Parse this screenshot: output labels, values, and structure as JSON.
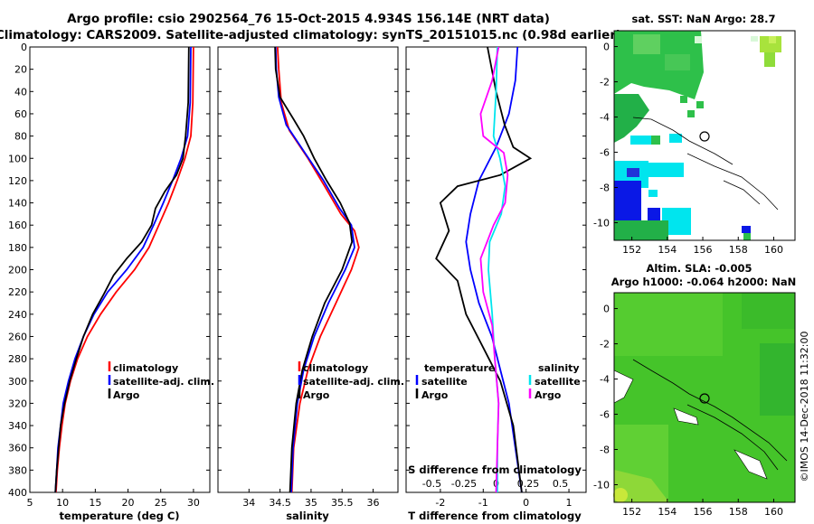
{
  "title_line1": "Argo profile: csio 2902564_76 15-Oct-2015 4.934S 156.14E (NRT data)",
  "title_line2": "Climatology: CARS2009. Satellite-adjusted climatology: synTS_20151015.nc (0.98d earlier)",
  "colors": {
    "climatology": "#ff0000",
    "satellite": "#0000ff",
    "argo": "#000000",
    "sal_sat": "#00e5ee",
    "sal_argo": "#ff00ff"
  },
  "chart_data": [
    {
      "type": "line",
      "name": "temperature",
      "xlabel": "temperature (deg C)",
      "xlim": [
        5,
        32.5
      ],
      "ylim": [
        400,
        0
      ],
      "xticks": [
        5,
        10,
        15,
        20,
        25,
        30
      ],
      "yticks": [
        0,
        20,
        40,
        60,
        80,
        100,
        120,
        140,
        160,
        180,
        200,
        220,
        240,
        260,
        280,
        300,
        320,
        340,
        360,
        380,
        400
      ],
      "legend": [
        "climatology",
        "satellite-adj. clim.",
        "Argo"
      ],
      "series": [
        {
          "name": "climatology",
          "points": [
            [
              30,
              0
            ],
            [
              29.9,
              50
            ],
            [
              29.6,
              80
            ],
            [
              28.7,
              100
            ],
            [
              27.5,
              120
            ],
            [
              26.2,
              140
            ],
            [
              24.7,
              160
            ],
            [
              23.2,
              180
            ],
            [
              21,
              200
            ],
            [
              18.2,
              220
            ],
            [
              15.8,
              240
            ],
            [
              13.8,
              260
            ],
            [
              12.3,
              280
            ],
            [
              11.2,
              300
            ],
            [
              10.4,
              320
            ],
            [
              9.9,
              340
            ],
            [
              9.5,
              360
            ],
            [
              9.2,
              380
            ],
            [
              9,
              400
            ]
          ]
        },
        {
          "name": "satellite",
          "points": [
            [
              29.6,
              0
            ],
            [
              29.5,
              50
            ],
            [
              29.1,
              80
            ],
            [
              28.1,
              100
            ],
            [
              26.8,
              120
            ],
            [
              25.4,
              140
            ],
            [
              23.9,
              160
            ],
            [
              22.3,
              180
            ],
            [
              19.8,
              200
            ],
            [
              16.9,
              220
            ],
            [
              14.8,
              240
            ],
            [
              13.2,
              260
            ],
            [
              11.9,
              280
            ],
            [
              10.9,
              300
            ],
            [
              10.1,
              320
            ],
            [
              9.7,
              340
            ],
            [
              9.3,
              360
            ],
            [
              9.1,
              380
            ],
            [
              8.9,
              400
            ]
          ]
        },
        {
          "name": "Argo",
          "points": [
            [
              29.3,
              0
            ],
            [
              29.2,
              50
            ],
            [
              28.8,
              80
            ],
            [
              28.4,
              100
            ],
            [
              27.4,
              115
            ],
            [
              25.6,
              130
            ],
            [
              24.2,
              145
            ],
            [
              23.6,
              160
            ],
            [
              22.1,
              175
            ],
            [
              19.8,
              190
            ],
            [
              17.8,
              205
            ],
            [
              16.3,
              222
            ],
            [
              14.6,
              240
            ],
            [
              13.2,
              260
            ],
            [
              12.1,
              280
            ],
            [
              11.1,
              300
            ],
            [
              10.3,
              320
            ],
            [
              9.7,
              340
            ],
            [
              9.4,
              360
            ],
            [
              9.1,
              380
            ],
            [
              8.9,
              400
            ]
          ]
        }
      ]
    },
    {
      "type": "line",
      "name": "salinity",
      "xlabel": "salinity",
      "xlim": [
        33.5,
        36.4
      ],
      "ylim": [
        400,
        0
      ],
      "xticks": [
        34,
        34.5,
        35,
        35.5,
        36
      ],
      "xtick_labels": [
        "34",
        "34.5",
        "35",
        "35.5",
        "36"
      ],
      "legend": [
        "climatology",
        "satellite-adj. clim.",
        "Argo"
      ],
      "series": [
        {
          "name": "climatology",
          "points": [
            [
              34.46,
              0
            ],
            [
              34.48,
              20
            ],
            [
              34.52,
              50
            ],
            [
              34.65,
              75
            ],
            [
              34.95,
              100
            ],
            [
              35.22,
              125
            ],
            [
              35.48,
              150
            ],
            [
              35.7,
              165
            ],
            [
              35.77,
              180
            ],
            [
              35.65,
              200
            ],
            [
              35.4,
              230
            ],
            [
              35.15,
              260
            ],
            [
              34.95,
              290
            ],
            [
              34.82,
              320
            ],
            [
              34.72,
              360
            ],
            [
              34.69,
              400
            ]
          ]
        },
        {
          "name": "satellite",
          "points": [
            [
              34.43,
              0
            ],
            [
              34.44,
              20
            ],
            [
              34.48,
              45
            ],
            [
              34.6,
              70
            ],
            [
              34.9,
              95
            ],
            [
              35.2,
              120
            ],
            [
              35.46,
              145
            ],
            [
              35.65,
              160
            ],
            [
              35.7,
              180
            ],
            [
              35.55,
              200
            ],
            [
              35.28,
              230
            ],
            [
              35.05,
              260
            ],
            [
              34.88,
              290
            ],
            [
              34.78,
              320
            ],
            [
              34.71,
              360
            ],
            [
              34.68,
              400
            ]
          ]
        },
        {
          "name": "Argo",
          "points": [
            [
              34.42,
              0
            ],
            [
              34.43,
              20
            ],
            [
              34.5,
              45
            ],
            [
              34.72,
              65
            ],
            [
              34.88,
              80
            ],
            [
              35.05,
              100
            ],
            [
              35.25,
              120
            ],
            [
              35.47,
              140
            ],
            [
              35.62,
              158
            ],
            [
              35.66,
              175
            ],
            [
              35.5,
              200
            ],
            [
              35.22,
              230
            ],
            [
              35.02,
              260
            ],
            [
              34.86,
              290
            ],
            [
              34.76,
              320
            ],
            [
              34.69,
              360
            ],
            [
              34.66,
              400
            ]
          ]
        }
      ]
    },
    {
      "type": "line",
      "name": "difference from climatology",
      "xlabel": "T difference from climatology",
      "xlabel_top": "S difference from climatology",
      "xlim": [
        -2.8,
        1.4
      ],
      "ylim": [
        400,
        0
      ],
      "xticks": [
        -2,
        -1,
        0,
        1
      ],
      "top_xticks": [
        -0.5,
        -0.25,
        0,
        0.25,
        0.5
      ],
      "top_xtick_labels": [
        "-0.5",
        "-0.25",
        "0",
        "0.25",
        "0.5"
      ],
      "legend_temperature_title": "temperature",
      "legend_salinity_title": "salinity",
      "legend_temperature": [
        "satellite",
        "Argo"
      ],
      "legend_salinity": [
        "satellite",
        "Argo"
      ],
      "series": [
        {
          "name": "T satellite",
          "points": [
            [
              -0.2,
              0
            ],
            [
              -0.25,
              30
            ],
            [
              -0.4,
              60
            ],
            [
              -0.7,
              90
            ],
            [
              -1.1,
              120
            ],
            [
              -1.3,
              150
            ],
            [
              -1.4,
              175
            ],
            [
              -1.3,
              200
            ],
            [
              -1.1,
              230
            ],
            [
              -0.8,
              260
            ],
            [
              -0.6,
              290
            ],
            [
              -0.4,
              320
            ],
            [
              -0.25,
              360
            ],
            [
              -0.1,
              400
            ]
          ]
        },
        {
          "name": "T Argo",
          "points": [
            [
              -0.9,
              0
            ],
            [
              -0.7,
              40
            ],
            [
              -0.5,
              70
            ],
            [
              -0.3,
              90
            ],
            [
              0.1,
              100
            ],
            [
              -0.6,
              115
            ],
            [
              -1.6,
              125
            ],
            [
              -2.0,
              140
            ],
            [
              -1.8,
              165
            ],
            [
              -2.1,
              190
            ],
            [
              -1.6,
              210
            ],
            [
              -1.4,
              240
            ],
            [
              -1.0,
              270
            ],
            [
              -0.6,
              300
            ],
            [
              -0.3,
              340
            ],
            [
              -0.1,
              400
            ]
          ]
        },
        {
          "name": "S satellite",
          "points": [
            [
              0.01,
              0
            ],
            [
              0.0,
              40
            ],
            [
              -0.02,
              80
            ],
            [
              0.03,
              100
            ],
            [
              0.07,
              125
            ],
            [
              0.04,
              150
            ],
            [
              -0.05,
              175
            ],
            [
              -0.06,
              200
            ],
            [
              -0.03,
              240
            ],
            [
              -0.01,
              280
            ],
            [
              0.02,
              320
            ],
            [
              0.01,
              360
            ],
            [
              0.01,
              400
            ]
          ]
        },
        {
          "name": "S Argo",
          "points": [
            [
              0.02,
              0
            ],
            [
              -0.03,
              30
            ],
            [
              -0.12,
              60
            ],
            [
              -0.1,
              80
            ],
            [
              0.06,
              95
            ],
            [
              0.09,
              115
            ],
            [
              0.07,
              140
            ],
            [
              -0.02,
              160
            ],
            [
              -0.12,
              190
            ],
            [
              -0.1,
              220
            ],
            [
              -0.03,
              250
            ],
            [
              -0.01,
              280
            ],
            [
              0.02,
              320
            ],
            [
              0.01,
              360
            ],
            [
              0.0,
              400
            ]
          ]
        }
      ]
    }
  ],
  "maps": [
    {
      "name": "sst-map",
      "title": "sat. SST: NaN Argo: 28.7",
      "xticks": [
        152,
        154,
        156,
        158,
        160
      ],
      "yticks": [
        0,
        -2,
        -4,
        -6,
        -8,
        -10
      ],
      "argo_lon": 156.14,
      "argo_lat": -4.934
    },
    {
      "name": "sla-map",
      "title1": "Altim. SLA: -0.005",
      "title2": "Argo h1000: -0.064 h2000: NaN",
      "xticks": [
        152,
        154,
        156,
        158,
        160
      ],
      "yticks": [
        0,
        -2,
        -4,
        -6,
        -8,
        -10
      ],
      "argo_lon": 156.14,
      "argo_lat": -4.934
    }
  ],
  "stamp": "©IMOS 14-Dec-2018 11:32:00"
}
